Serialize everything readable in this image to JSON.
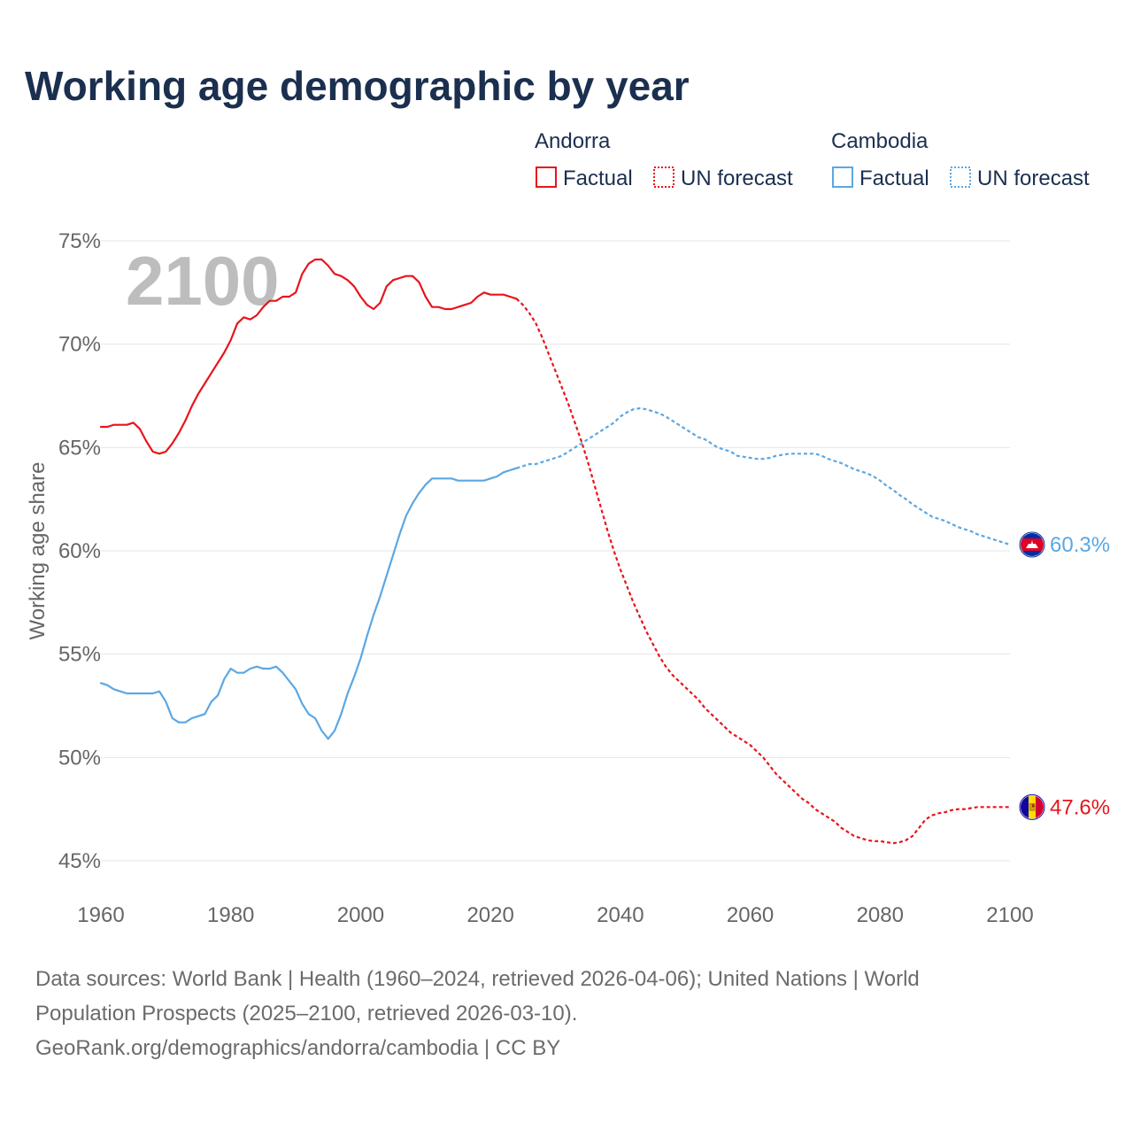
{
  "chart_data": {
    "type": "line",
    "title": "Working age demographic by year",
    "watermark_year": "2100",
    "ylabel": "Working age share",
    "xlabel": "",
    "xlim": [
      1960,
      2100
    ],
    "ylim": [
      45,
      75
    ],
    "x_ticks": [
      1960,
      1980,
      2000,
      2020,
      2040,
      2060,
      2080,
      2100
    ],
    "x_tick_labels": [
      "1960",
      "1980",
      "2000",
      "2020",
      "2040",
      "2060",
      "2080",
      "2100"
    ],
    "y_ticks": [
      45,
      50,
      55,
      60,
      65,
      70,
      75
    ],
    "y_tick_labels": [
      "45%",
      "50%",
      "55%",
      "60%",
      "65%",
      "70%",
      "75%"
    ],
    "legend": [
      {
        "country": "Andorra",
        "factual": "Factual",
        "forecast": "UN forecast",
        "color": "#e8141c"
      },
      {
        "country": "Cambodia",
        "factual": "Factual",
        "forecast": "UN forecast",
        "color": "#5ba7e3"
      }
    ],
    "series": [
      {
        "name": "Andorra",
        "color": "#e8141c",
        "end_label": "47.6%",
        "factual": [
          [
            1960,
            66.0
          ],
          [
            1961,
            66.0
          ],
          [
            1962,
            66.1
          ],
          [
            1963,
            66.1
          ],
          [
            1964,
            66.1
          ],
          [
            1965,
            66.2
          ],
          [
            1966,
            65.9
          ],
          [
            1967,
            65.3
          ],
          [
            1968,
            64.8
          ],
          [
            1969,
            64.7
          ],
          [
            1970,
            64.8
          ],
          [
            1971,
            65.2
          ],
          [
            1972,
            65.7
          ],
          [
            1973,
            66.3
          ],
          [
            1974,
            67.0
          ],
          [
            1975,
            67.6
          ],
          [
            1976,
            68.1
          ],
          [
            1977,
            68.6
          ],
          [
            1978,
            69.1
          ],
          [
            1979,
            69.6
          ],
          [
            1980,
            70.2
          ],
          [
            1981,
            71.0
          ],
          [
            1982,
            71.3
          ],
          [
            1983,
            71.2
          ],
          [
            1984,
            71.4
          ],
          [
            1985,
            71.8
          ],
          [
            1986,
            72.1
          ],
          [
            1987,
            72.1
          ],
          [
            1988,
            72.3
          ],
          [
            1989,
            72.3
          ],
          [
            1990,
            72.5
          ],
          [
            1991,
            73.4
          ],
          [
            1992,
            73.9
          ],
          [
            1993,
            74.1
          ],
          [
            1994,
            74.1
          ],
          [
            1995,
            73.8
          ],
          [
            1996,
            73.4
          ],
          [
            1997,
            73.3
          ],
          [
            1998,
            73.1
          ],
          [
            1999,
            72.8
          ],
          [
            2000,
            72.3
          ],
          [
            2001,
            71.9
          ],
          [
            2002,
            71.7
          ],
          [
            2003,
            72.0
          ],
          [
            2004,
            72.8
          ],
          [
            2005,
            73.1
          ],
          [
            2006,
            73.2
          ],
          [
            2007,
            73.3
          ],
          [
            2008,
            73.3
          ],
          [
            2009,
            73.0
          ],
          [
            2010,
            72.3
          ],
          [
            2011,
            71.8
          ],
          [
            2012,
            71.8
          ],
          [
            2013,
            71.7
          ],
          [
            2014,
            71.7
          ],
          [
            2015,
            71.8
          ],
          [
            2016,
            71.9
          ],
          [
            2017,
            72.0
          ],
          [
            2018,
            72.3
          ],
          [
            2019,
            72.5
          ],
          [
            2020,
            72.4
          ],
          [
            2021,
            72.4
          ],
          [
            2022,
            72.4
          ],
          [
            2023,
            72.3
          ],
          [
            2024,
            72.2
          ]
        ],
        "forecast": [
          [
            2024,
            72.2
          ],
          [
            2025,
            71.9
          ],
          [
            2026,
            71.5
          ],
          [
            2027,
            71.0
          ],
          [
            2028,
            70.3
          ],
          [
            2029,
            69.5
          ],
          [
            2030,
            68.7
          ],
          [
            2031,
            67.9
          ],
          [
            2032,
            67.1
          ],
          [
            2033,
            66.2
          ],
          [
            2034,
            65.3
          ],
          [
            2035,
            64.3
          ],
          [
            2036,
            63.2
          ],
          [
            2037,
            62.1
          ],
          [
            2038,
            61.0
          ],
          [
            2039,
            60.0
          ],
          [
            2040,
            59.1
          ],
          [
            2041,
            58.3
          ],
          [
            2042,
            57.5
          ],
          [
            2043,
            56.8
          ],
          [
            2044,
            56.1
          ],
          [
            2045,
            55.5
          ],
          [
            2046,
            54.9
          ],
          [
            2047,
            54.4
          ],
          [
            2048,
            54.0
          ],
          [
            2049,
            53.7
          ],
          [
            2050,
            53.4
          ],
          [
            2051,
            53.1
          ],
          [
            2052,
            52.8
          ],
          [
            2053,
            52.4
          ],
          [
            2054,
            52.1
          ],
          [
            2055,
            51.8
          ],
          [
            2056,
            51.5
          ],
          [
            2057,
            51.2
          ],
          [
            2058,
            51.0
          ],
          [
            2059,
            50.8
          ],
          [
            2060,
            50.6
          ],
          [
            2061,
            50.3
          ],
          [
            2062,
            50.0
          ],
          [
            2063,
            49.6
          ],
          [
            2064,
            49.2
          ],
          [
            2065,
            48.9
          ],
          [
            2066,
            48.6
          ],
          [
            2067,
            48.3
          ],
          [
            2068,
            48.0
          ],
          [
            2069,
            47.8
          ],
          [
            2070,
            47.5
          ],
          [
            2071,
            47.3
          ],
          [
            2072,
            47.1
          ],
          [
            2073,
            46.9
          ],
          [
            2074,
            46.6
          ],
          [
            2075,
            46.4
          ],
          [
            2076,
            46.2
          ],
          [
            2077,
            46.1
          ],
          [
            2078,
            46.0
          ],
          [
            2079,
            45.95
          ],
          [
            2080,
            45.95
          ],
          [
            2081,
            45.9
          ],
          [
            2082,
            45.85
          ],
          [
            2083,
            45.9
          ],
          [
            2084,
            46.0
          ],
          [
            2085,
            46.2
          ],
          [
            2086,
            46.6
          ],
          [
            2087,
            47.0
          ],
          [
            2088,
            47.2
          ],
          [
            2089,
            47.3
          ],
          [
            2090,
            47.35
          ],
          [
            2091,
            47.45
          ],
          [
            2092,
            47.5
          ],
          [
            2093,
            47.5
          ],
          [
            2094,
            47.55
          ],
          [
            2095,
            47.6
          ],
          [
            2096,
            47.6
          ],
          [
            2097,
            47.6
          ],
          [
            2098,
            47.6
          ],
          [
            2099,
            47.6
          ],
          [
            2100,
            47.6
          ]
        ]
      },
      {
        "name": "Cambodia",
        "color": "#5ba7e3",
        "end_label": "60.3%",
        "factual": [
          [
            1960,
            53.6
          ],
          [
            1961,
            53.5
          ],
          [
            1962,
            53.3
          ],
          [
            1963,
            53.2
          ],
          [
            1964,
            53.1
          ],
          [
            1965,
            53.1
          ],
          [
            1966,
            53.1
          ],
          [
            1967,
            53.1
          ],
          [
            1968,
            53.1
          ],
          [
            1969,
            53.2
          ],
          [
            1970,
            52.7
          ],
          [
            1971,
            51.9
          ],
          [
            1972,
            51.7
          ],
          [
            1973,
            51.7
          ],
          [
            1974,
            51.9
          ],
          [
            1975,
            52.0
          ],
          [
            1976,
            52.1
          ],
          [
            1977,
            52.7
          ],
          [
            1978,
            53.0
          ],
          [
            1979,
            53.8
          ],
          [
            1980,
            54.3
          ],
          [
            1981,
            54.1
          ],
          [
            1982,
            54.1
          ],
          [
            1983,
            54.3
          ],
          [
            1984,
            54.4
          ],
          [
            1985,
            54.3
          ],
          [
            1986,
            54.3
          ],
          [
            1987,
            54.4
          ],
          [
            1988,
            54.1
          ],
          [
            1989,
            53.7
          ],
          [
            1990,
            53.3
          ],
          [
            1991,
            52.6
          ],
          [
            1992,
            52.1
          ],
          [
            1993,
            51.9
          ],
          [
            1994,
            51.3
          ],
          [
            1995,
            50.9
          ],
          [
            1996,
            51.3
          ],
          [
            1997,
            52.1
          ],
          [
            1998,
            53.1
          ],
          [
            1999,
            53.9
          ],
          [
            2000,
            54.8
          ],
          [
            2001,
            55.9
          ],
          [
            2002,
            56.9
          ],
          [
            2003,
            57.8
          ],
          [
            2004,
            58.8
          ],
          [
            2005,
            59.8
          ],
          [
            2006,
            60.8
          ],
          [
            2007,
            61.7
          ],
          [
            2008,
            62.3
          ],
          [
            2009,
            62.8
          ],
          [
            2010,
            63.2
          ],
          [
            2011,
            63.5
          ],
          [
            2012,
            63.5
          ],
          [
            2013,
            63.5
          ],
          [
            2014,
            63.5
          ],
          [
            2015,
            63.4
          ],
          [
            2016,
            63.4
          ],
          [
            2017,
            63.4
          ],
          [
            2018,
            63.4
          ],
          [
            2019,
            63.4
          ],
          [
            2020,
            63.5
          ],
          [
            2021,
            63.6
          ],
          [
            2022,
            63.8
          ],
          [
            2023,
            63.9
          ],
          [
            2024,
            64.0
          ]
        ],
        "forecast": [
          [
            2024,
            64.0
          ],
          [
            2025,
            64.1
          ],
          [
            2026,
            64.2
          ],
          [
            2027,
            64.2
          ],
          [
            2028,
            64.3
          ],
          [
            2029,
            64.4
          ],
          [
            2030,
            64.5
          ],
          [
            2031,
            64.6
          ],
          [
            2032,
            64.8
          ],
          [
            2033,
            65.0
          ],
          [
            2034,
            65.2
          ],
          [
            2035,
            65.4
          ],
          [
            2036,
            65.6
          ],
          [
            2037,
            65.8
          ],
          [
            2038,
            66.0
          ],
          [
            2039,
            66.2
          ],
          [
            2040,
            66.5
          ],
          [
            2041,
            66.7
          ],
          [
            2042,
            66.85
          ],
          [
            2043,
            66.9
          ],
          [
            2044,
            66.85
          ],
          [
            2045,
            66.75
          ],
          [
            2046,
            66.65
          ],
          [
            2047,
            66.5
          ],
          [
            2048,
            66.3
          ],
          [
            2049,
            66.1
          ],
          [
            2050,
            65.9
          ],
          [
            2051,
            65.7
          ],
          [
            2052,
            65.5
          ],
          [
            2053,
            65.4
          ],
          [
            2054,
            65.2
          ],
          [
            2055,
            65.0
          ],
          [
            2056,
            64.9
          ],
          [
            2057,
            64.8
          ],
          [
            2058,
            64.6
          ],
          [
            2059,
            64.55
          ],
          [
            2060,
            64.5
          ],
          [
            2061,
            64.45
          ],
          [
            2062,
            64.45
          ],
          [
            2063,
            64.5
          ],
          [
            2064,
            64.6
          ],
          [
            2065,
            64.65
          ],
          [
            2066,
            64.7
          ],
          [
            2067,
            64.7
          ],
          [
            2068,
            64.7
          ],
          [
            2069,
            64.7
          ],
          [
            2070,
            64.7
          ],
          [
            2071,
            64.6
          ],
          [
            2072,
            64.45
          ],
          [
            2073,
            64.35
          ],
          [
            2074,
            64.25
          ],
          [
            2075,
            64.1
          ],
          [
            2076,
            63.95
          ],
          [
            2077,
            63.85
          ],
          [
            2078,
            63.75
          ],
          [
            2079,
            63.6
          ],
          [
            2080,
            63.4
          ],
          [
            2081,
            63.15
          ],
          [
            2082,
            62.95
          ],
          [
            2083,
            62.7
          ],
          [
            2084,
            62.5
          ],
          [
            2085,
            62.25
          ],
          [
            2086,
            62.05
          ],
          [
            2087,
            61.85
          ],
          [
            2088,
            61.65
          ],
          [
            2089,
            61.55
          ],
          [
            2090,
            61.45
          ],
          [
            2091,
            61.3
          ],
          [
            2092,
            61.15
          ],
          [
            2093,
            61.05
          ],
          [
            2094,
            60.95
          ],
          [
            2095,
            60.8
          ],
          [
            2096,
            60.7
          ],
          [
            2097,
            60.6
          ],
          [
            2098,
            60.5
          ],
          [
            2099,
            60.4
          ],
          [
            2100,
            60.3
          ]
        ]
      }
    ]
  },
  "footer": {
    "line1": "Data sources: World Bank | Health (1960–2024, retrieved 2026-04-06); United Nations | World",
    "line2": "Population Prospects (2025–2100, retrieved 2026-03-10).",
    "line3": "GeoRank.org/demographics/andorra/cambodia | CC BY"
  },
  "colors": {
    "title": "#1b2f4f",
    "axis_text": "#666666",
    "grid": "#e6e6e6",
    "watermark": "#bdbdbd",
    "footer_text": "#6b6b6b",
    "legend_text": "#1b2f4f"
  }
}
